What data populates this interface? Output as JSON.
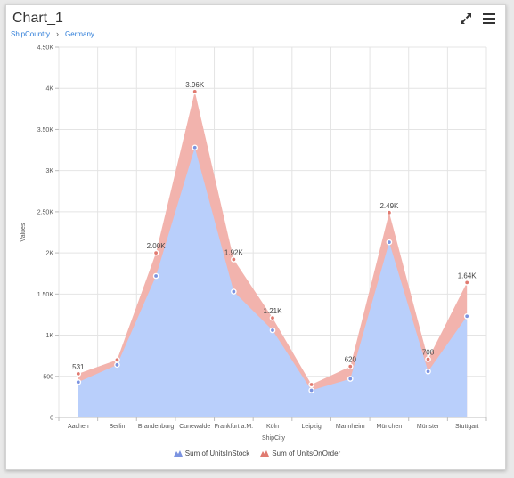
{
  "header": {
    "title": "Chart_1",
    "breadcrumb": [
      "ShipCountry",
      "Germany"
    ],
    "icons": [
      "expand-icon",
      "menu-icon"
    ]
  },
  "chart_data": {
    "type": "area",
    "xlabel": "ShipCity",
    "ylabel": "Values",
    "categories": [
      "Aachen",
      "Berlin",
      "Brandenburg",
      "Cunewalde",
      "Frankfurt a.M.",
      "Köln",
      "Leipzig",
      "Mannheim",
      "München",
      "Münster",
      "Stuttgart"
    ],
    "ylim": [
      0,
      4500
    ],
    "yticks": [
      0,
      500,
      1000,
      1500,
      2000,
      2500,
      3000,
      3500,
      4000,
      4500
    ],
    "ytick_labels": [
      "0",
      "500",
      "1K",
      "1.50K",
      "2K",
      "2.50K",
      "3K",
      "3.50K",
      "4K",
      "4.50K"
    ],
    "grid": true,
    "legend_position": "bottom",
    "series": [
      {
        "name": "Sum of UnitsInStock",
        "color": "#b9cffb",
        "marker_color": "#7b93e0",
        "values": [
          430,
          640,
          1720,
          3280,
          1530,
          1060,
          330,
          470,
          2130,
          560,
          1230
        ]
      },
      {
        "name": "Sum of UnitsOnOrder",
        "color": "#f2b3ad",
        "marker_color": "#e07a70",
        "values": [
          531,
          700,
          2000,
          3960,
          1920,
          1210,
          400,
          620,
          2490,
          708,
          1640
        ]
      }
    ],
    "data_labels": [
      "531",
      "",
      "2.00K",
      "3.96K",
      "1.92K",
      "1.21K",
      "",
      "620",
      "2.49K",
      "708",
      "1.64K"
    ]
  }
}
